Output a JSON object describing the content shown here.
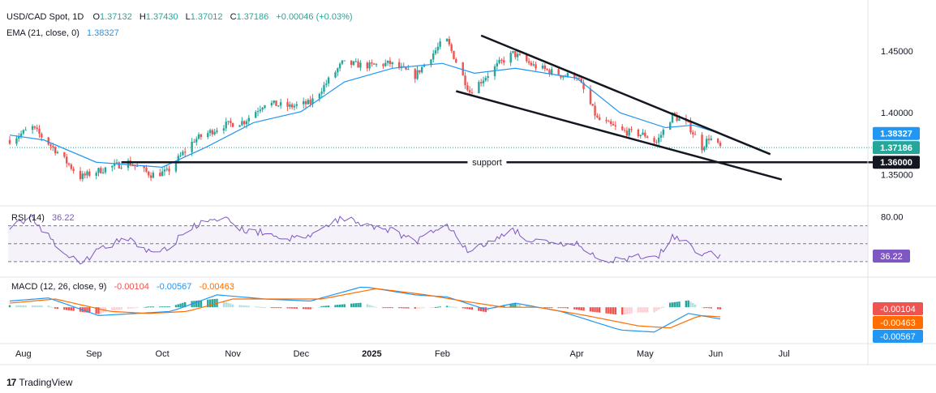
{
  "header": {
    "symbol": "USD/CAD Spot, 1D",
    "open_label": "O",
    "open": "1.37132",
    "high_label": "H",
    "high": "1.37430",
    "low_label": "L",
    "low": "1.37012",
    "close_label": "C",
    "close": "1.37186",
    "change": "+0.00046 (+0.03%)",
    "ema_label": "EMA (21, close, 0)",
    "ema_value": "1.38327"
  },
  "colors": {
    "up": "#26a69a",
    "down": "#ef5350",
    "ema": "#2196f3",
    "rsi": "#7e57c2",
    "macd": "#2196f3",
    "signal": "#ff6d00",
    "trendline": "#131722"
  },
  "chart_data": [
    {
      "type": "candlestick",
      "title": "USD/CAD Spot, 1D",
      "y_ticks": [
        "1.45000",
        "1.40000",
        "1.35000"
      ],
      "ylim": [
        1.33,
        1.486
      ],
      "price_tags": [
        {
          "value": "1.38327",
          "series": "EMA (21, close, 0)",
          "color": "#2196f3"
        },
        {
          "value": "1.37186",
          "series": "Close",
          "color": "#26a69a"
        },
        {
          "value": "1.36000",
          "series": "support",
          "color": "#131722"
        }
      ],
      "support": {
        "label": "support",
        "level": 1.36
      },
      "channel_upper": {
        "from": {
          "date": "2025-02-18",
          "price": 1.4625
        },
        "to": {
          "date": "2025-06-25",
          "price": 1.3665
        }
      },
      "channel_lower": {
        "from": {
          "date": "2025-02-07",
          "price": 1.4175
        },
        "to": {
          "date": "2025-06-30",
          "price": 1.346
        }
      },
      "anchors": [
        {
          "date": "2024-07-26",
          "price": 1.378
        },
        {
          "date": "2024-08-05",
          "price": 1.388
        },
        {
          "date": "2024-08-15",
          "price": 1.37
        },
        {
          "date": "2024-08-26",
          "price": 1.348
        },
        {
          "date": "2024-09-06",
          "price": 1.355
        },
        {
          "date": "2024-09-16",
          "price": 1.36
        },
        {
          "date": "2024-09-26",
          "price": 1.35
        },
        {
          "date": "2024-10-03",
          "price": 1.352
        },
        {
          "date": "2024-10-15",
          "price": 1.378
        },
        {
          "date": "2024-10-28",
          "price": 1.39
        },
        {
          "date": "2024-11-06",
          "price": 1.393
        },
        {
          "date": "2024-11-15",
          "price": 1.408
        },
        {
          "date": "2024-11-26",
          "price": 1.405
        },
        {
          "date": "2024-12-05",
          "price": 1.408
        },
        {
          "date": "2024-12-19",
          "price": 1.44
        },
        {
          "date": "2024-12-31",
          "price": 1.438
        },
        {
          "date": "2025-01-09",
          "price": 1.44
        },
        {
          "date": "2025-01-20",
          "price": 1.43
        },
        {
          "date": "2025-01-31",
          "price": 1.455
        },
        {
          "date": "2025-02-03",
          "price": 1.458
        },
        {
          "date": "2025-02-13",
          "price": 1.417
        },
        {
          "date": "2025-02-26",
          "price": 1.44
        },
        {
          "date": "2025-03-04",
          "price": 1.448
        },
        {
          "date": "2025-03-13",
          "price": 1.438
        },
        {
          "date": "2025-03-26",
          "price": 1.43
        },
        {
          "date": "2025-04-01",
          "price": 1.43
        },
        {
          "date": "2025-04-10",
          "price": 1.395
        },
        {
          "date": "2025-04-21",
          "price": 1.385
        },
        {
          "date": "2025-05-01",
          "price": 1.382
        },
        {
          "date": "2025-05-06",
          "price": 1.376
        },
        {
          "date": "2025-05-13",
          "price": 1.398
        },
        {
          "date": "2025-05-20",
          "price": 1.39
        },
        {
          "date": "2025-05-26",
          "price": 1.372
        },
        {
          "date": "2025-05-29",
          "price": 1.38
        },
        {
          "date": "2025-06-03",
          "price": 1.372
        }
      ],
      "ema_path": [
        {
          "date": "2024-07-26",
          "price": 1.382
        },
        {
          "date": "2024-08-10",
          "price": 1.378
        },
        {
          "date": "2024-09-02",
          "price": 1.36
        },
        {
          "date": "2024-10-01",
          "price": 1.356
        },
        {
          "date": "2024-10-20",
          "price": 1.372
        },
        {
          "date": "2024-11-10",
          "price": 1.392
        },
        {
          "date": "2024-12-01",
          "price": 1.401
        },
        {
          "date": "2024-12-20",
          "price": 1.425
        },
        {
          "date": "2025-01-10",
          "price": 1.436
        },
        {
          "date": "2025-02-01",
          "price": 1.44
        },
        {
          "date": "2025-02-15",
          "price": 1.432
        },
        {
          "date": "2025-03-05",
          "price": 1.436
        },
        {
          "date": "2025-04-01",
          "price": 1.428
        },
        {
          "date": "2025-04-20",
          "price": 1.4
        },
        {
          "date": "2025-05-10",
          "price": 1.388
        },
        {
          "date": "2025-05-22",
          "price": 1.39
        },
        {
          "date": "2025-06-03",
          "price": 1.3833
        }
      ]
    },
    {
      "type": "line",
      "title": "RSI (14)",
      "value": "36.22",
      "y_ticks": [
        "80.00"
      ],
      "ylim": [
        20,
        85
      ],
      "bands": [
        70,
        50,
        30
      ],
      "points": [
        {
          "date": "2024-07-26",
          "value": 70
        },
        {
          "date": "2024-08-05",
          "value": 78
        },
        {
          "date": "2024-08-15",
          "value": 50
        },
        {
          "date": "2024-08-26",
          "value": 28
        },
        {
          "date": "2024-09-06",
          "value": 48
        },
        {
          "date": "2024-09-16",
          "value": 55
        },
        {
          "date": "2024-09-26",
          "value": 40
        },
        {
          "date": "2024-10-03",
          "value": 45
        },
        {
          "date": "2024-10-15",
          "value": 70
        },
        {
          "date": "2024-10-28",
          "value": 78
        },
        {
          "date": "2024-11-06",
          "value": 65
        },
        {
          "date": "2024-11-15",
          "value": 62
        },
        {
          "date": "2024-11-26",
          "value": 55
        },
        {
          "date": "2024-12-05",
          "value": 58
        },
        {
          "date": "2024-12-19",
          "value": 80
        },
        {
          "date": "2024-12-31",
          "value": 70
        },
        {
          "date": "2025-01-09",
          "value": 66
        },
        {
          "date": "2025-01-20",
          "value": 52
        },
        {
          "date": "2025-01-31",
          "value": 70
        },
        {
          "date": "2025-02-03",
          "value": 72
        },
        {
          "date": "2025-02-13",
          "value": 40
        },
        {
          "date": "2025-02-26",
          "value": 58
        },
        {
          "date": "2025-03-04",
          "value": 66
        },
        {
          "date": "2025-03-13",
          "value": 52
        },
        {
          "date": "2025-03-26",
          "value": 48
        },
        {
          "date": "2025-04-01",
          "value": 50
        },
        {
          "date": "2025-04-10",
          "value": 32
        },
        {
          "date": "2025-04-21",
          "value": 32
        },
        {
          "date": "2025-05-01",
          "value": 36
        },
        {
          "date": "2025-05-06",
          "value": 34
        },
        {
          "date": "2025-05-13",
          "value": 58
        },
        {
          "date": "2025-05-20",
          "value": 54
        },
        {
          "date": "2025-05-26",
          "value": 34
        },
        {
          "date": "2025-05-29",
          "value": 42
        },
        {
          "date": "2025-06-03",
          "value": 36.22
        }
      ]
    },
    {
      "type": "line",
      "title": "MACD (12, 26, close, 9)",
      "values_text": [
        "-0.00104",
        "-0.00567",
        "-0.00463"
      ],
      "series": [
        {
          "name": "MACD",
          "value": "-0.00567",
          "points": [
            {
              "date": "2024-07-26",
              "value": 0.003
            },
            {
              "date": "2024-08-12",
              "value": 0.0045
            },
            {
              "date": "2024-09-03",
              "value": -0.004
            },
            {
              "date": "2024-09-20",
              "value": -0.003
            },
            {
              "date": "2024-10-05",
              "value": -0.002
            },
            {
              "date": "2024-10-25",
              "value": 0.006
            },
            {
              "date": "2024-11-15",
              "value": 0.004
            },
            {
              "date": "2024-12-05",
              "value": 0.003
            },
            {
              "date": "2024-12-28",
              "value": 0.01
            },
            {
              "date": "2025-01-20",
              "value": 0.006
            },
            {
              "date": "2025-02-03",
              "value": 0.005
            },
            {
              "date": "2025-02-20",
              "value": -0.001
            },
            {
              "date": "2025-03-05",
              "value": 0.002
            },
            {
              "date": "2025-03-25",
              "value": -0.002
            },
            {
              "date": "2025-04-20",
              "value": -0.011
            },
            {
              "date": "2025-05-05",
              "value": -0.012
            },
            {
              "date": "2025-05-20",
              "value": -0.003
            },
            {
              "date": "2025-06-03",
              "value": -0.00567
            }
          ]
        },
        {
          "name": "Signal",
          "value": "-0.00463",
          "points": [
            {
              "date": "2024-07-26",
              "value": 0.002
            },
            {
              "date": "2024-08-15",
              "value": 0.004
            },
            {
              "date": "2024-09-08",
              "value": -0.002
            },
            {
              "date": "2024-09-25",
              "value": -0.003
            },
            {
              "date": "2024-10-12",
              "value": -0.002
            },
            {
              "date": "2024-11-01",
              "value": 0.004
            },
            {
              "date": "2024-11-20",
              "value": 0.004
            },
            {
              "date": "2024-12-10",
              "value": 0.004
            },
            {
              "date": "2025-01-03",
              "value": 0.009
            },
            {
              "date": "2025-01-25",
              "value": 0.006
            },
            {
              "date": "2025-02-10",
              "value": 0.003
            },
            {
              "date": "2025-02-28",
              "value": 0.0
            },
            {
              "date": "2025-03-15",
              "value": 0.0
            },
            {
              "date": "2025-04-05",
              "value": -0.004
            },
            {
              "date": "2025-04-28",
              "value": -0.009
            },
            {
              "date": "2025-05-12",
              "value": -0.01
            },
            {
              "date": "2025-05-25",
              "value": -0.004
            },
            {
              "date": "2025-06-03",
              "value": -0.00463
            }
          ]
        },
        {
          "name": "Histogram",
          "value": "-0.00104"
        }
      ],
      "ylim": [
        -0.016,
        0.013
      ]
    }
  ],
  "x_axis": {
    "labels": [
      {
        "text": "Aug",
        "date": "2024-08-01"
      },
      {
        "text": "Sep",
        "date": "2024-09-01"
      },
      {
        "text": "Oct",
        "date": "2024-10-01"
      },
      {
        "text": "Nov",
        "date": "2024-11-01"
      },
      {
        "text": "Dec",
        "date": "2024-12-01"
      },
      {
        "text": "2025",
        "date": "2025-01-01",
        "bold": true
      },
      {
        "text": "Feb",
        "date": "2025-02-01"
      },
      {
        "text": "Apr",
        "date": "2025-04-01"
      },
      {
        "text": "May",
        "date": "2025-05-01"
      },
      {
        "text": "Jun",
        "date": "2025-06-01"
      },
      {
        "text": "Jul",
        "date": "2025-07-01"
      }
    ]
  },
  "footer": {
    "logo": "17",
    "brand": "TradingView"
  }
}
